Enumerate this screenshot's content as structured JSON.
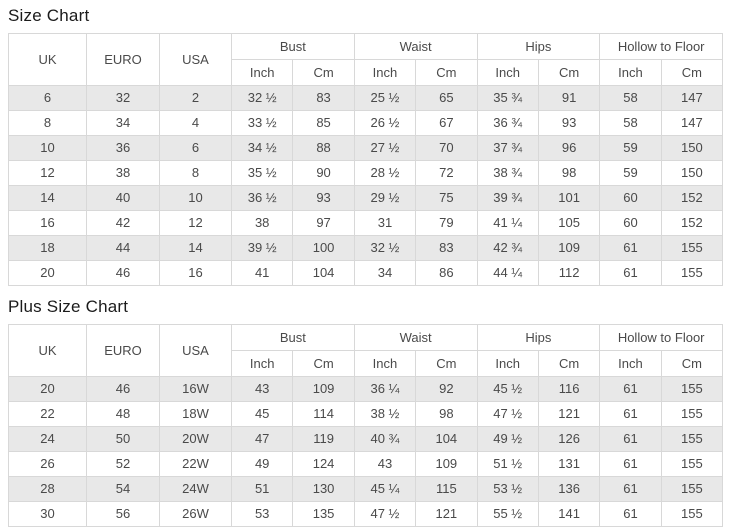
{
  "colors": {
    "row_alt": "#e8e8e8",
    "border": "#d8d8d8",
    "text": "#4a4a4a",
    "title": "#1b1b1b"
  },
  "header": {
    "uk": "UK",
    "euro": "EURO",
    "usa": "USA",
    "bust": "Bust",
    "waist": "Waist",
    "hips": "Hips",
    "hollow_to_floor": "Hollow to Floor",
    "inch": "Inch",
    "cm": "Cm"
  },
  "chart_data": [
    {
      "type": "table",
      "title": "Size Chart",
      "column_groups": [
        "UK",
        "EURO",
        "USA",
        "Bust",
        "Waist",
        "Hips",
        "Hollow to Floor"
      ],
      "columns": [
        "UK",
        "EURO",
        "USA",
        "Bust Inch",
        "Bust Cm",
        "Waist Inch",
        "Waist Cm",
        "Hips Inch",
        "Hips Cm",
        "Hollow to Floor Inch",
        "Hollow to Floor Cm"
      ],
      "rows": [
        [
          "6",
          "32",
          "2",
          "32 ½",
          "83",
          "25 ½",
          "65",
          "35 ¾",
          "91",
          "58",
          "147"
        ],
        [
          "8",
          "34",
          "4",
          "33 ½",
          "85",
          "26 ½",
          "67",
          "36 ¾",
          "93",
          "58",
          "147"
        ],
        [
          "10",
          "36",
          "6",
          "34 ½",
          "88",
          "27 ½",
          "70",
          "37 ¾",
          "96",
          "59",
          "150"
        ],
        [
          "12",
          "38",
          "8",
          "35 ½",
          "90",
          "28 ½",
          "72",
          "38 ¾",
          "98",
          "59",
          "150"
        ],
        [
          "14",
          "40",
          "10",
          "36 ½",
          "93",
          "29 ½",
          "75",
          "39 ¾",
          "101",
          "60",
          "152"
        ],
        [
          "16",
          "42",
          "12",
          "38",
          "97",
          "31",
          "79",
          "41 ¼",
          "105",
          "60",
          "152"
        ],
        [
          "18",
          "44",
          "14",
          "39 ½",
          "100",
          "32 ½",
          "83",
          "42 ¾",
          "109",
          "61",
          "155"
        ],
        [
          "20",
          "46",
          "16",
          "41",
          "104",
          "34",
          "86",
          "44 ¼",
          "112",
          "61",
          "155"
        ]
      ]
    },
    {
      "type": "table",
      "title": "Plus Size Chart",
      "column_groups": [
        "UK",
        "EURO",
        "USA",
        "Bust",
        "Waist",
        "Hips",
        "Hollow to Floor"
      ],
      "columns": [
        "UK",
        "EURO",
        "USA",
        "Bust Inch",
        "Bust Cm",
        "Waist Inch",
        "Waist Cm",
        "Hips Inch",
        "Hips Cm",
        "Hollow to Floor Inch",
        "Hollow to Floor Cm"
      ],
      "rows": [
        [
          "20",
          "46",
          "16W",
          "43",
          "109",
          "36 ¼",
          "92",
          "45 ½",
          "116",
          "61",
          "155"
        ],
        [
          "22",
          "48",
          "18W",
          "45",
          "114",
          "38 ½",
          "98",
          "47 ½",
          "121",
          "61",
          "155"
        ],
        [
          "24",
          "50",
          "20W",
          "47",
          "119",
          "40 ¾",
          "104",
          "49 ½",
          "126",
          "61",
          "155"
        ],
        [
          "26",
          "52",
          "22W",
          "49",
          "124",
          "43",
          "109",
          "51 ½",
          "131",
          "61",
          "155"
        ],
        [
          "28",
          "54",
          "24W",
          "51",
          "130",
          "45 ¼",
          "115",
          "53 ½",
          "136",
          "61",
          "155"
        ],
        [
          "30",
          "56",
          "26W",
          "53",
          "135",
          "47 ½",
          "121",
          "55 ½",
          "141",
          "61",
          "155"
        ]
      ]
    }
  ]
}
